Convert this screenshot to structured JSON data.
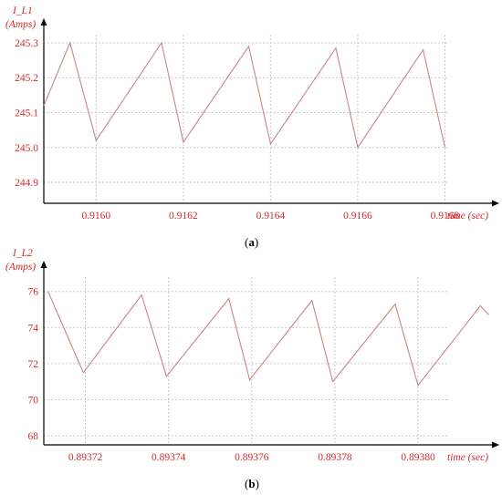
{
  "chart_data": [
    {
      "type": "line",
      "caption": "a",
      "ylabel": "I_L1",
      "yunit": "(Amps)",
      "xlabel": "time (sec)",
      "xlim": [
        0.91588,
        0.91691
      ],
      "ylim": [
        244.84,
        245.36
      ],
      "xticks": [
        "0.9160",
        "0.9162",
        "0.9164",
        "0.9166",
        "0.9168"
      ],
      "xtick_values": [
        0.916,
        0.9162,
        0.9164,
        0.9166,
        0.9168
      ],
      "yticks": [
        "244.9",
        "245.0",
        "245.1",
        "245.2",
        "245.3"
      ],
      "ytick_values": [
        244.9,
        245.0,
        245.1,
        245.2,
        245.3
      ],
      "grid": true,
      "series": [
        {
          "x": [
            0.91588,
            0.91594,
            0.916,
            0.91615,
            0.9162,
            0.91635,
            0.9164,
            0.91655,
            0.9166,
            0.91675,
            0.9168
          ],
          "y": [
            245.12,
            245.3,
            245.02,
            245.3,
            245.015,
            245.29,
            245.01,
            245.285,
            245.0,
            245.28,
            245.0
          ],
          "color": "#c98585"
        }
      ]
    },
    {
      "type": "line",
      "caption": "b",
      "ylabel": "I_L2",
      "yunit": "(Amps)",
      "xlabel": "time (sec)",
      "xlim": [
        0.89371,
        0.893818
      ],
      "ylim": [
        67.5,
        77.5
      ],
      "xticks": [
        "0.89372",
        "0.89374",
        "0.89376",
        "0.89378",
        "0.89380"
      ],
      "xtick_values": [
        0.89372,
        0.89374,
        0.89376,
        0.89378,
        0.8938
      ],
      "yticks": [
        "68",
        "70",
        "72",
        "74",
        "76"
      ],
      "ytick_values": [
        68,
        70,
        72,
        74,
        76
      ],
      "grid": true,
      "series": [
        {
          "x": [
            0.893711,
            0.8937195,
            0.8937335,
            0.8937395,
            0.8937545,
            0.8937595,
            0.8937745,
            0.8937795,
            0.8937945,
            0.8938,
            0.893815,
            0.893817
          ],
          "y": [
            76.0,
            71.5,
            75.8,
            71.3,
            75.6,
            71.1,
            75.5,
            71.0,
            75.3,
            70.8,
            75.2,
            74.7
          ],
          "color": "#c98585"
        }
      ]
    }
  ]
}
